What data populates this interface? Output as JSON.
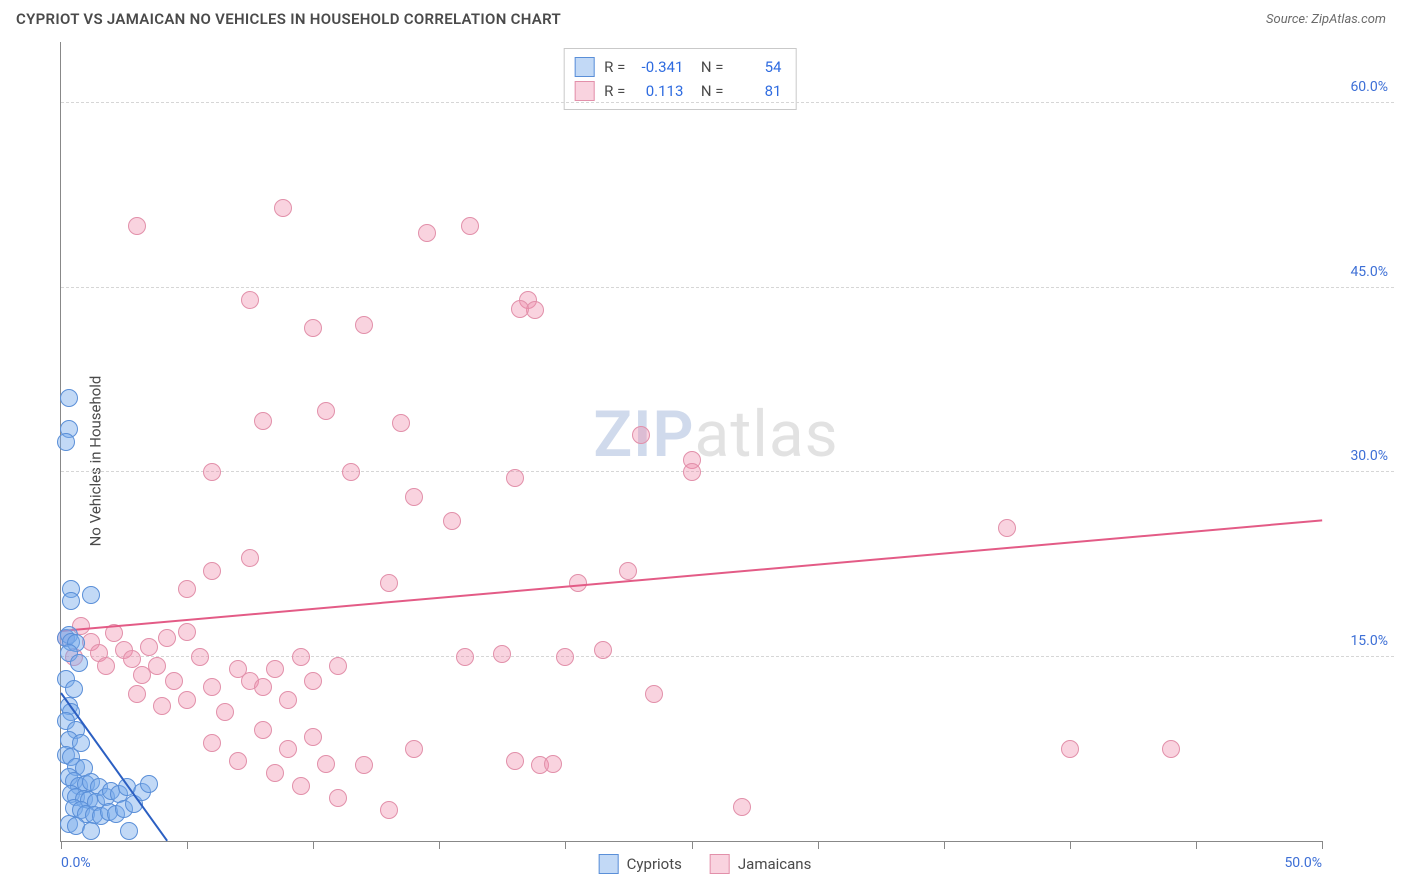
{
  "header": {
    "title": "CYPRIOT VS JAMAICAN NO VEHICLES IN HOUSEHOLD CORRELATION CHART",
    "source": "Source: ZipAtlas.com"
  },
  "ylabel": "No Vehicles in Household",
  "watermark": {
    "zip": "ZIP",
    "rest": "atlas"
  },
  "axes": {
    "xmin": 0,
    "xmax": 50,
    "ymin": 0,
    "ymax": 65,
    "xticks": [
      0,
      5,
      10,
      15,
      20,
      25,
      30,
      35,
      40,
      45,
      50
    ],
    "xticklabels": {
      "0": "0.0%",
      "50": "50.0%"
    },
    "yticks": [
      15,
      30,
      45,
      60
    ],
    "yticklabels": {
      "15": "15.0%",
      "30": "30.0%",
      "45": "45.0%",
      "60": "60.0%"
    },
    "grid_color": "#d6d6d6"
  },
  "series": {
    "cypriots": {
      "label": "Cypriots",
      "fill": "rgba(120,170,235,0.45)",
      "stroke": "#5a8fd8",
      "line_color": "#2b5fc2",
      "marker_r": 9,
      "R": "-0.341",
      "N": "54",
      "regression": {
        "x1": 0,
        "y1": 12,
        "x2": 4.2,
        "y2": 0
      },
      "points": [
        [
          0.3,
          36
        ],
        [
          0.3,
          33.5
        ],
        [
          0.2,
          32.5
        ],
        [
          0.4,
          20.5
        ],
        [
          0.4,
          19.5
        ],
        [
          1.2,
          20
        ],
        [
          0.2,
          16.5
        ],
        [
          0.3,
          16.8
        ],
        [
          0.4,
          16.2
        ],
        [
          0.6,
          16.1
        ],
        [
          0.3,
          15.3
        ],
        [
          0.7,
          14.5
        ],
        [
          0.2,
          13.2
        ],
        [
          0.5,
          12.4
        ],
        [
          0.3,
          11.0
        ],
        [
          0.4,
          10.5
        ],
        [
          0.2,
          9.8
        ],
        [
          0.6,
          9.0
        ],
        [
          0.3,
          8.2
        ],
        [
          0.8,
          8.0
        ],
        [
          0.2,
          7.0
        ],
        [
          0.4,
          6.8
        ],
        [
          0.6,
          6.0
        ],
        [
          0.9,
          5.9
        ],
        [
          0.3,
          5.2
        ],
        [
          0.5,
          4.9
        ],
        [
          0.7,
          4.5
        ],
        [
          1.0,
          4.6
        ],
        [
          1.2,
          4.8
        ],
        [
          1.5,
          4.4
        ],
        [
          0.4,
          3.8
        ],
        [
          0.6,
          3.6
        ],
        [
          0.9,
          3.4
        ],
        [
          1.1,
          3.3
        ],
        [
          1.4,
          3.2
        ],
        [
          1.8,
          3.6
        ],
        [
          2.0,
          4.1
        ],
        [
          2.3,
          3.8
        ],
        [
          2.6,
          4.4
        ],
        [
          0.5,
          2.7
        ],
        [
          0.8,
          2.5
        ],
        [
          1.0,
          2.2
        ],
        [
          1.3,
          2.1
        ],
        [
          1.6,
          2.0
        ],
        [
          1.9,
          2.4
        ],
        [
          2.2,
          2.2
        ],
        [
          2.5,
          2.6
        ],
        [
          2.9,
          3.0
        ],
        [
          3.2,
          4.0
        ],
        [
          3.5,
          4.6
        ],
        [
          0.3,
          1.4
        ],
        [
          0.6,
          1.2
        ],
        [
          1.2,
          0.8
        ],
        [
          2.7,
          0.8
        ]
      ]
    },
    "jamaicans": {
      "label": "Jamaicans",
      "fill": "rgba(240,140,170,0.38)",
      "stroke": "#e290aa",
      "line_color": "#e35b86",
      "marker_r": 9,
      "R": "0.113",
      "N": "81",
      "regression": {
        "x1": 0,
        "y1": 17,
        "x2": 50,
        "y2": 26
      },
      "points": [
        [
          8.8,
          51.5
        ],
        [
          3.0,
          50
        ],
        [
          14.5,
          49.5
        ],
        [
          16.2,
          50
        ],
        [
          7.5,
          44
        ],
        [
          10,
          41.7
        ],
        [
          18.5,
          44
        ],
        [
          18.8,
          43.2
        ],
        [
          18.2,
          43.3
        ],
        [
          12,
          42
        ],
        [
          10.5,
          35
        ],
        [
          8,
          34.2
        ],
        [
          13.5,
          34
        ],
        [
          23,
          33
        ],
        [
          25,
          31
        ],
        [
          25,
          30
        ],
        [
          11.5,
          30
        ],
        [
          6,
          30
        ],
        [
          14,
          28
        ],
        [
          18,
          29.5
        ],
        [
          15.5,
          26
        ],
        [
          37.5,
          25.5
        ],
        [
          6,
          22
        ],
        [
          7.5,
          23
        ],
        [
          13,
          21
        ],
        [
          20.5,
          21
        ],
        [
          22.5,
          22
        ],
        [
          5,
          20.5
        ],
        [
          0.2,
          16.5
        ],
        [
          0.5,
          15
        ],
        [
          0.8,
          17.5
        ],
        [
          1.2,
          16.2
        ],
        [
          1.5,
          15.3
        ],
        [
          1.8,
          14.2
        ],
        [
          2.1,
          16.9
        ],
        [
          2.5,
          15.5
        ],
        [
          2.8,
          14.8
        ],
        [
          3.2,
          13.5
        ],
        [
          3.5,
          15.8
        ],
        [
          3.8,
          14.2
        ],
        [
          4.2,
          16.5
        ],
        [
          4.5,
          13
        ],
        [
          5,
          17
        ],
        [
          5.5,
          15
        ],
        [
          3,
          12
        ],
        [
          4,
          11
        ],
        [
          5,
          11.5
        ],
        [
          6,
          12.5
        ],
        [
          6.5,
          10.5
        ],
        [
          7,
          14
        ],
        [
          7.5,
          13
        ],
        [
          8,
          12.5
        ],
        [
          8.5,
          14
        ],
        [
          9,
          11.5
        ],
        [
          9.5,
          15
        ],
        [
          10,
          13
        ],
        [
          11,
          14.2
        ],
        [
          16,
          15
        ],
        [
          17.5,
          15.2
        ],
        [
          20,
          15
        ],
        [
          21.5,
          15.5
        ],
        [
          23.5,
          12
        ],
        [
          6,
          8
        ],
        [
          7,
          6.5
        ],
        [
          8,
          9
        ],
        [
          8.5,
          5.5
        ],
        [
          9,
          7.5
        ],
        [
          9.5,
          4.5
        ],
        [
          10,
          8.5
        ],
        [
          10.5,
          6.3
        ],
        [
          11,
          3.5
        ],
        [
          12,
          6.2
        ],
        [
          13,
          2.5
        ],
        [
          14,
          7.5
        ],
        [
          18,
          6.5
        ],
        [
          19,
          6.2
        ],
        [
          19.5,
          6.3
        ],
        [
          27,
          2.8
        ],
        [
          40,
          7.5
        ],
        [
          44,
          7.5
        ]
      ]
    }
  },
  "bottom_legend": [
    "Cypriots",
    "Jamaicans"
  ]
}
